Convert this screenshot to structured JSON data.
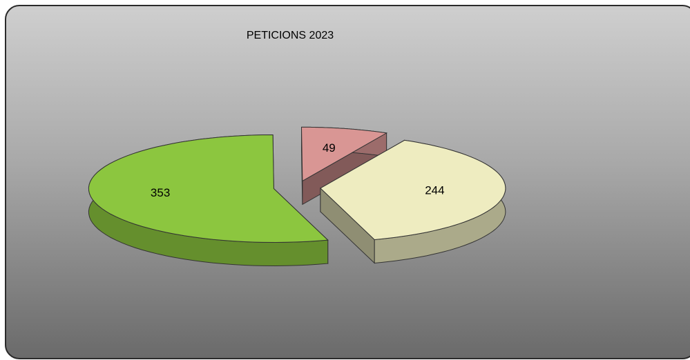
{
  "chart_data": {
    "type": "pie",
    "title": "PETICIONS 2023",
    "values": [
      353,
      49,
      244
    ],
    "colors": [
      "#8cc63f",
      "#d99694",
      "#eeecc0"
    ]
  }
}
